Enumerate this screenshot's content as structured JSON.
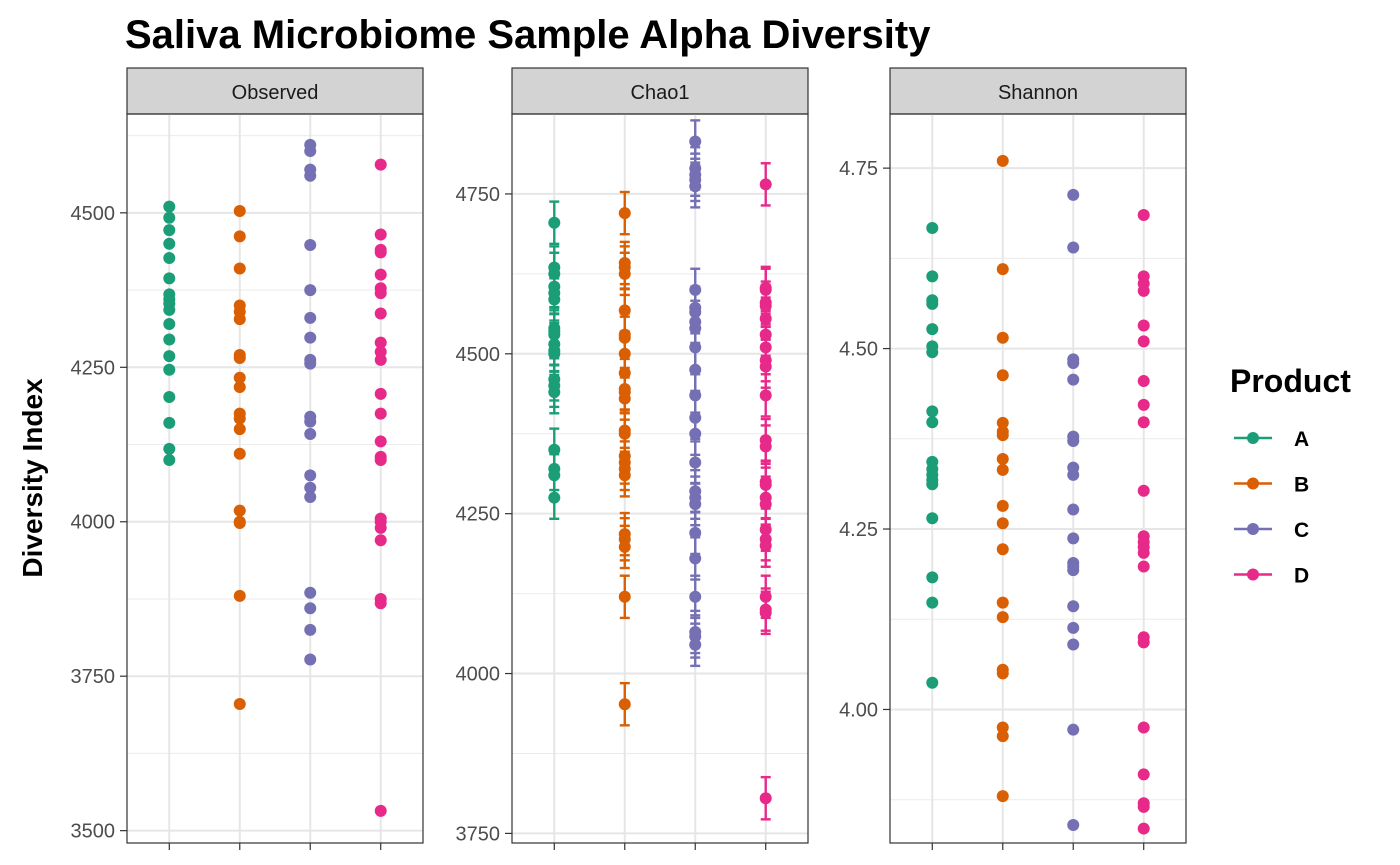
{
  "chart_data": {
    "type": "scatter",
    "title": "Saliva Microbiome Sample Alpha Diversity",
    "ylabel": "Diversity Index",
    "xlabel": "",
    "grid": true,
    "legend": {
      "title": "Product",
      "placement": "right",
      "entries": [
        {
          "name": "A",
          "color": "#1B9E77"
        },
        {
          "name": "B",
          "color": "#D95F02"
        },
        {
          "name": "C",
          "color": "#7570B3"
        },
        {
          "name": "D",
          "color": "#E7298A"
        }
      ]
    },
    "categories": [
      "A",
      "B",
      "C",
      "D"
    ],
    "panels": [
      {
        "name": "Observed",
        "ylim": [
          3480,
          4660
        ],
        "yticks": [
          3500,
          3750,
          4000,
          4250,
          4500
        ],
        "ytick_labels": [
          "3500",
          "3750",
          "4000",
          "4250",
          "4500"
        ],
        "error_bars": false,
        "series": [
          {
            "name": "A",
            "values": [
              4510,
              4492,
              4472,
              4450,
              4427,
              4394,
              4368,
              4360,
              4353,
              4343,
              4320,
              4295,
              4268,
              4246,
              4202,
              4160,
              4118,
              4100
            ]
          },
          {
            "name": "B",
            "values": [
              4503,
              4462,
              4410,
              4350,
              4340,
              4328,
              4270,
              4265,
              4233,
              4218,
              4175,
              4167,
              4150,
              4110,
              4018,
              4000,
              3998,
              3880,
              3705
            ]
          },
          {
            "name": "C",
            "values": [
              4610,
              4600,
              4570,
              4560,
              4448,
              4375,
              4330,
              4298,
              4262,
              4256,
              4170,
              4162,
              4142,
              4075,
              4055,
              4040,
              3885,
              3860,
              3825,
              3777
            ]
          },
          {
            "name": "D",
            "values": [
              4578,
              4465,
              4440,
              4436,
              4400,
              4378,
              4370,
              4337,
              4290,
              4275,
              4262,
              4207,
              4175,
              4130,
              4105,
              4100,
              4005,
              4000,
              3990,
              3970,
              3875,
              3868,
              3532
            ]
          }
        ]
      },
      {
        "name": "Chao1",
        "ylim": [
          3735,
          4875
        ],
        "yticks": [
          3750,
          4000,
          4250,
          4500,
          4750
        ],
        "ytick_labels": [
          "3750",
          "4000",
          "4250",
          "4500",
          "4750"
        ],
        "error_bars": true,
        "error_half_width": 33,
        "series": [
          {
            "name": "A",
            "values": [
              4705,
              4635,
              4625,
              4605,
              4595,
              4585,
              4540,
              4535,
              4530,
              4515,
              4505,
              4500,
              4460,
              4450,
              4440,
              4350,
              4320,
              4310,
              4275
            ]
          },
          {
            "name": "B",
            "values": [
              4720,
              4642,
              4635,
              4625,
              4568,
              4530,
              4525,
              4500,
              4470,
              4445,
              4440,
              4430,
              4380,
              4375,
              4340,
              4330,
              4320,
              4310,
              4218,
              4210,
              4198,
              4120,
              3952
            ]
          },
          {
            "name": "C",
            "values": [
              4832,
              4790,
              4780,
              4772,
              4762,
              4600,
              4572,
              4565,
              4550,
              4540,
              4510,
              4475,
              4435,
              4400,
              4375,
              4330,
              4285,
              4275,
              4265,
              4220,
              4180,
              4120,
              4065,
              4058,
              4045
            ]
          },
          {
            "name": "D",
            "values": [
              4765,
              4603,
              4600,
              4580,
              4575,
              4555,
              4530,
              4510,
              4490,
              4480,
              4435,
              4365,
              4355,
              4300,
              4295,
              4275,
              4265,
              4225,
              4210,
              4200,
              4120,
              4100,
              4095,
              3805
            ]
          }
        ]
      },
      {
        "name": "Shannon",
        "ylim": [
          3.815,
          4.825
        ],
        "yticks": [
          4.0,
          4.25,
          4.5,
          4.75
        ],
        "ytick_labels": [
          "4.00",
          "4.25",
          "4.50",
          "4.75"
        ],
        "error_bars": false,
        "series": [
          {
            "name": "A",
            "values": [
              4.667,
              4.6,
              4.567,
              4.562,
              4.527,
              4.503,
              4.495,
              4.413,
              4.398,
              4.343,
              4.333,
              4.325,
              4.318,
              4.312,
              4.265,
              4.183,
              4.148,
              4.037
            ]
          },
          {
            "name": "B",
            "values": [
              4.76,
              4.61,
              4.515,
              4.463,
              4.397,
              4.385,
              4.38,
              4.347,
              4.332,
              4.282,
              4.258,
              4.222,
              4.148,
              4.128,
              4.055,
              4.05,
              3.975,
              3.963,
              3.88
            ]
          },
          {
            "name": "C",
            "values": [
              4.713,
              4.64,
              4.485,
              4.48,
              4.457,
              4.378,
              4.372,
              4.335,
              4.325,
              4.277,
              4.237,
              4.203,
              4.198,
              4.193,
              4.143,
              4.113,
              4.09,
              3.972,
              3.84
            ]
          },
          {
            "name": "D",
            "values": [
              4.685,
              4.6,
              4.59,
              4.58,
              4.532,
              4.51,
              4.455,
              4.422,
              4.398,
              4.303,
              4.24,
              4.232,
              4.225,
              4.217,
              4.198,
              4.1,
              4.093,
              3.975,
              3.91,
              3.87,
              3.865,
              3.835
            ]
          }
        ]
      }
    ]
  }
}
